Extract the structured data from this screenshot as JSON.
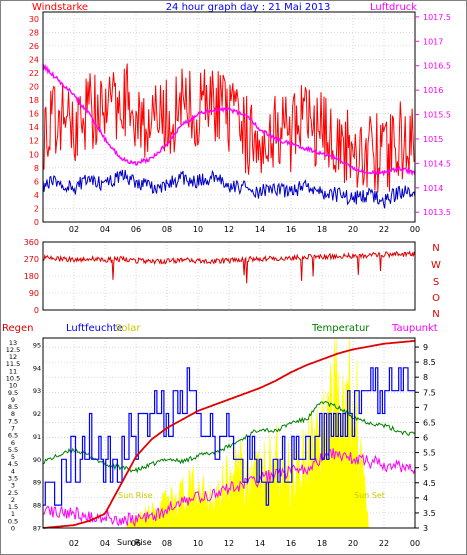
{
  "title": "24 hour graph day : 21 Mai 2013",
  "colors": {
    "wind": "#ff0000",
    "gust": "#ff0000",
    "pressure": "#ff00ff",
    "avgwind": "#0000c8",
    "winddir": "#e00000",
    "rain": "#e00000",
    "humidity": "#0000ff",
    "solar": "#ffff00",
    "temperature": "#008000",
    "dewpoint": "#ff00ff",
    "frame": "#000000",
    "grid": "#c0c0c0"
  },
  "chart_data": [
    {
      "type": "line",
      "panel": "wind-pressure",
      "title": "24 hour graph day : 21 Mai 2013",
      "left_label": "Windstarke",
      "right_label": "Luftdruck",
      "x_ticks": [
        "02",
        "04",
        "06",
        "08",
        "10",
        "12",
        "14",
        "16",
        "18",
        "20",
        "22",
        "00"
      ],
      "x_range": [
        0,
        24
      ],
      "left_axis": {
        "ticks": [
          "0",
          "2",
          "4",
          "6",
          "8",
          "10",
          "12",
          "14",
          "16",
          "18",
          "20",
          "22",
          "24",
          "26",
          "28",
          "30"
        ],
        "range": [
          0,
          31
        ]
      },
      "right_axis": {
        "ticks": [
          "1013.5",
          "1014",
          "1014.5",
          "1015",
          "1015.5",
          "1016",
          "1016.5",
          "1017",
          "1017.5"
        ],
        "range": [
          1013.3,
          1017.6
        ]
      },
      "series": [
        {
          "key": "gust",
          "x": [
            0,
            1,
            2,
            3,
            4,
            5,
            6,
            7,
            8,
            9,
            10,
            11,
            12,
            13,
            14,
            15,
            16,
            17,
            18,
            19,
            20,
            21,
            22,
            23,
            24
          ],
          "y": [
            12,
            14,
            13,
            16,
            14,
            18,
            15,
            13,
            14,
            16,
            15,
            17,
            14,
            12,
            11,
            13,
            12,
            14,
            12,
            11,
            9,
            10,
            8,
            11,
            10
          ]
        },
        {
          "key": "avgwind",
          "x": [
            0,
            1,
            2,
            3,
            4,
            5,
            6,
            7,
            8,
            9,
            10,
            11,
            12,
            13,
            14,
            15,
            16,
            17,
            18,
            19,
            20,
            21,
            22,
            23,
            24
          ],
          "y": [
            5.5,
            6,
            5,
            6.5,
            5.5,
            7,
            6,
            5,
            5.5,
            6.5,
            6,
            6.5,
            5.5,
            5,
            4.5,
            5,
            4.5,
            5.5,
            4.5,
            4,
            3.5,
            4,
            3,
            4.5,
            4
          ]
        },
        {
          "key": "pressure",
          "x": [
            0,
            1,
            2,
            3,
            4,
            5,
            6,
            7,
            8,
            9,
            10,
            11,
            12,
            13,
            14,
            15,
            16,
            17,
            18,
            19,
            20,
            21,
            22,
            23,
            24
          ],
          "y": [
            1016.5,
            1016.2,
            1015.9,
            1015.5,
            1015.0,
            1014.6,
            1014.5,
            1014.6,
            1014.9,
            1015.3,
            1015.5,
            1015.6,
            1015.6,
            1015.5,
            1015.2,
            1015.0,
            1014.9,
            1014.8,
            1014.7,
            1014.6,
            1014.4,
            1014.3,
            1014.3,
            1014.4,
            1014.3
          ]
        }
      ]
    },
    {
      "type": "line",
      "panel": "wind-direction",
      "x_ticks": [
        "02",
        "04",
        "06",
        "08",
        "10",
        "12",
        "14",
        "16",
        "18",
        "20",
        "22",
        "00"
      ],
      "x_range": [
        0,
        24
      ],
      "left_axis": {
        "ticks": [
          "0",
          "90",
          "180",
          "270",
          "360"
        ],
        "range": [
          0,
          360
        ]
      },
      "direction_labels": [
        "N",
        "W",
        "S",
        "O",
        "N"
      ],
      "series": [
        {
          "key": "winddir",
          "x": [
            0,
            1,
            2,
            3,
            4,
            5,
            6,
            7,
            8,
            9,
            10,
            11,
            12,
            13,
            14,
            15,
            16,
            17,
            18,
            19,
            20,
            21,
            22,
            23,
            24
          ],
          "y": [
            275,
            270,
            268,
            272,
            265,
            270,
            262,
            255,
            258,
            265,
            260,
            258,
            262,
            268,
            270,
            272,
            275,
            280,
            283,
            285,
            287,
            290,
            293,
            295,
            295
          ]
        }
      ]
    },
    {
      "type": "line",
      "panel": "rain-humidity-temperature",
      "labels": {
        "rain": "Regen",
        "humidity": "Luftfeuchte",
        "solar": "Solar",
        "temperature": "Temperatur",
        "dewpoint": "Taupunkt",
        "sunrise": "Sun Rise",
        "sunset": "Sun Set",
        "sunrise_axis": "Sun Rise"
      },
      "x_ticks": [
        "02",
        "04",
        "06",
        "08",
        "10",
        "12",
        "14",
        "16",
        "18",
        "20",
        "22",
        "00"
      ],
      "x_range": [
        0,
        24
      ],
      "rain_axis": {
        "ticks": [
          "0",
          "0.5",
          "1",
          "1.5",
          "2",
          "2.5",
          "3",
          "3.5",
          "4",
          "4.5",
          "5",
          "5.5",
          "6",
          "6.5",
          "7",
          "7.5",
          "8",
          "8.5",
          "9",
          "9.5",
          "10",
          "10.5",
          "11",
          "11.5",
          "12",
          "12.5",
          "13"
        ],
        "range": [
          0,
          13.3
        ]
      },
      "humidity_axis": {
        "ticks": [
          "87",
          "88",
          "89",
          "90",
          "91",
          "92",
          "93",
          "94",
          "95"
        ],
        "range": [
          87,
          95.3
        ]
      },
      "temperature_axis": {
        "ticks": [
          "3",
          "3.5",
          "4",
          "4.5",
          "5",
          "5.5",
          "6",
          "6.5",
          "7",
          "7.5",
          "8",
          "8.5",
          "9"
        ],
        "range": [
          3,
          9.3
        ]
      },
      "sunrise_hour": 5.4,
      "sunset_hour": 21.3,
      "series": [
        {
          "key": "rain",
          "x": [
            0,
            1,
            2,
            3,
            4,
            5,
            6,
            7,
            8,
            9,
            10,
            11,
            12,
            13,
            14,
            15,
            16,
            17,
            18,
            19,
            20,
            21,
            22,
            23,
            24
          ],
          "y": [
            0,
            0.1,
            0.2,
            0.5,
            1.0,
            3.0,
            5.0,
            6.2,
            7.0,
            7.6,
            8.2,
            8.6,
            9.0,
            9.4,
            9.8,
            10.3,
            10.9,
            11.4,
            11.8,
            12.2,
            12.5,
            12.7,
            12.9,
            13.0,
            13.1
          ]
        },
        {
          "key": "humidity",
          "x": [
            0,
            1,
            2,
            3,
            4,
            5,
            6,
            7,
            8,
            9,
            10,
            11,
            12,
            13,
            14,
            15,
            16,
            17,
            18,
            19,
            20,
            21,
            22,
            23,
            24
          ],
          "y": [
            89.5,
            89,
            90,
            91,
            90,
            90,
            91,
            92,
            92,
            93,
            92,
            91,
            91,
            90,
            89,
            90,
            90,
            90,
            91,
            92,
            92,
            93,
            93,
            94,
            93
          ]
        },
        {
          "key": "temperature",
          "x": [
            0,
            1,
            2,
            3,
            4,
            5,
            6,
            7,
            8,
            9,
            10,
            11,
            12,
            13,
            14,
            15,
            16,
            17,
            18,
            19,
            20,
            21,
            22,
            23,
            24
          ],
          "y": [
            5.2,
            5.4,
            5.6,
            5.4,
            5.1,
            5.0,
            4.9,
            5.1,
            5.3,
            5.2,
            5.4,
            5.5,
            5.7,
            6.0,
            6.3,
            6.2,
            6.5,
            6.6,
            7.2,
            7.0,
            6.7,
            6.5,
            6.4,
            6.2,
            6.1
          ]
        },
        {
          "key": "dewpoint",
          "x": [
            0,
            1,
            2,
            3,
            4,
            5,
            6,
            7,
            8,
            9,
            10,
            11,
            12,
            13,
            14,
            15,
            16,
            17,
            18,
            19,
            20,
            21,
            22,
            23,
            24
          ],
          "y": [
            3.7,
            3.5,
            3.5,
            3.4,
            3.4,
            3.3,
            3.3,
            3.4,
            3.6,
            3.9,
            4.0,
            4.1,
            4.3,
            4.5,
            4.6,
            4.8,
            4.9,
            5.0,
            5.3,
            5.5,
            5.3,
            5.2,
            5.1,
            5.0,
            5.0
          ]
        },
        {
          "key": "solar",
          "x": [
            0,
            5,
            6,
            7,
            8,
            9,
            10,
            11,
            12,
            13,
            14,
            15,
            16,
            17,
            18,
            19,
            20,
            21,
            22,
            23,
            24
          ],
          "y": [
            0,
            0,
            0.05,
            0.1,
            0.15,
            0.2,
            0.25,
            0.2,
            0.3,
            0.35,
            0.3,
            0.4,
            0.35,
            0.45,
            0.6,
            0.9,
            1.0,
            0,
            0,
            0,
            0
          ]
        }
      ]
    }
  ]
}
